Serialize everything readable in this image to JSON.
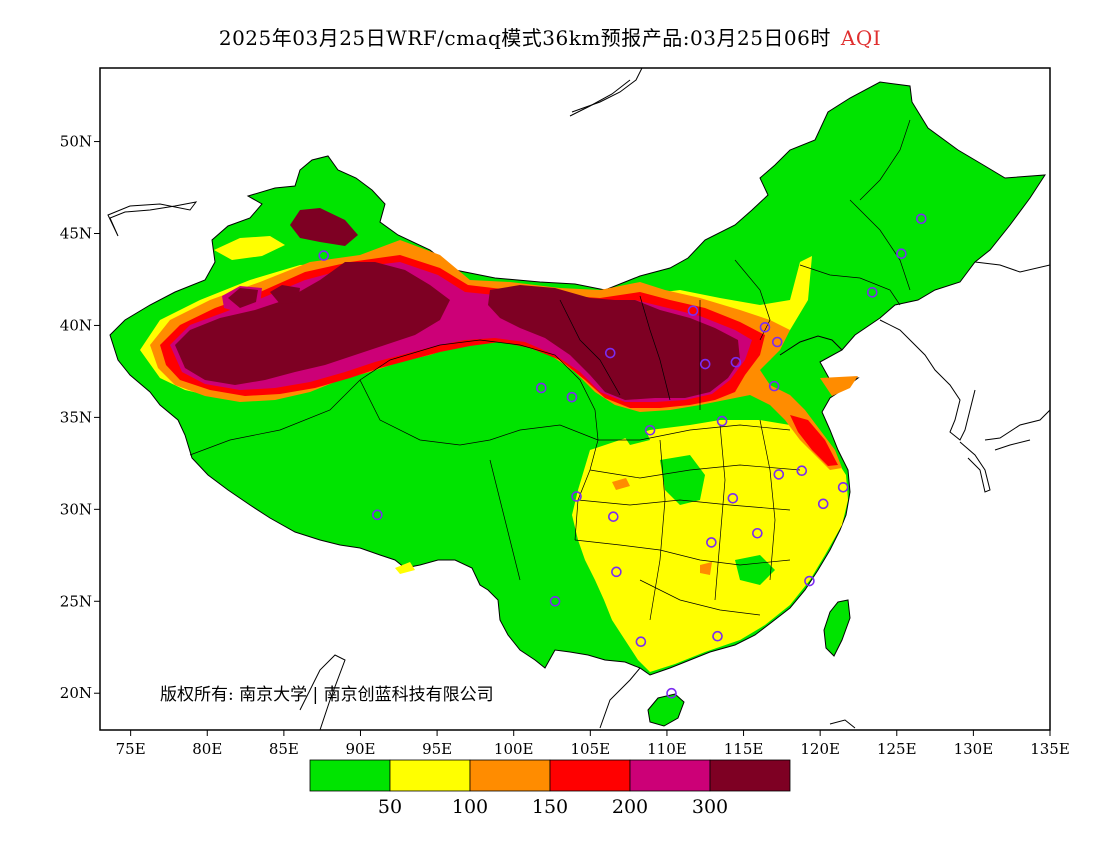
{
  "title": {
    "main": "2025年03月25日WRF/cmaq模式36km预报产品:03月25日06时",
    "variable": "AQI"
  },
  "axes": {
    "lat_labels": [
      "50N",
      "45N",
      "40N",
      "35N",
      "30N",
      "25N",
      "20N"
    ],
    "lon_labels": [
      "75E",
      "80E",
      "85E",
      "90E",
      "95E",
      "100E",
      "105E",
      "110E",
      "115E",
      "120E",
      "125E",
      "130E",
      "135E"
    ],
    "lat_range": [
      18,
      54
    ],
    "lon_range": [
      73,
      135
    ]
  },
  "copyright": "版权所有: 南京大学 | 南京创蓝科技有限公司",
  "legend": {
    "colors": [
      "#00e400",
      "#ffff00",
      "#ff8c00",
      "#ff0000",
      "#cc0077",
      "#7e0023"
    ],
    "labels": [
      "50",
      "100",
      "150",
      "200",
      "300"
    ]
  },
  "colors": {
    "good": "#00e400",
    "moderate": "#ffff00",
    "usg": "#ff8c00",
    "unhealthy": "#ff0000",
    "very_unhealthy": "#cc0077",
    "hazardous": "#7e0023",
    "station_marker": "#7b2cf0"
  },
  "stations": [
    {
      "lon": 87.6,
      "lat": 43.8
    },
    {
      "lon": 126.6,
      "lat": 45.8
    },
    {
      "lon": 125.3,
      "lat": 43.9
    },
    {
      "lon": 123.4,
      "lat": 41.8
    },
    {
      "lon": 111.7,
      "lat": 40.8
    },
    {
      "lon": 116.4,
      "lat": 39.9
    },
    {
      "lon": 117.2,
      "lat": 39.1
    },
    {
      "lon": 106.3,
      "lat": 38.5
    },
    {
      "lon": 112.5,
      "lat": 37.9
    },
    {
      "lon": 114.5,
      "lat": 38.0
    },
    {
      "lon": 101.8,
      "lat": 36.6
    },
    {
      "lon": 103.8,
      "lat": 36.1
    },
    {
      "lon": 117.0,
      "lat": 36.7
    },
    {
      "lon": 108.9,
      "lat": 34.3
    },
    {
      "lon": 113.6,
      "lat": 34.8
    },
    {
      "lon": 117.3,
      "lat": 31.9
    },
    {
      "lon": 118.8,
      "lat": 32.1
    },
    {
      "lon": 121.5,
      "lat": 31.2
    },
    {
      "lon": 104.1,
      "lat": 30.7
    },
    {
      "lon": 106.5,
      "lat": 29.6
    },
    {
      "lon": 114.3,
      "lat": 30.6
    },
    {
      "lon": 120.2,
      "lat": 30.3
    },
    {
      "lon": 115.9,
      "lat": 28.7
    },
    {
      "lon": 112.9,
      "lat": 28.2
    },
    {
      "lon": 91.1,
      "lat": 29.7
    },
    {
      "lon": 106.7,
      "lat": 26.6
    },
    {
      "lon": 119.3,
      "lat": 26.1
    },
    {
      "lon": 102.7,
      "lat": 25.0
    },
    {
      "lon": 113.3,
      "lat": 23.1
    },
    {
      "lon": 108.3,
      "lat": 22.8
    },
    {
      "lon": 110.3,
      "lat": 20.0
    }
  ]
}
